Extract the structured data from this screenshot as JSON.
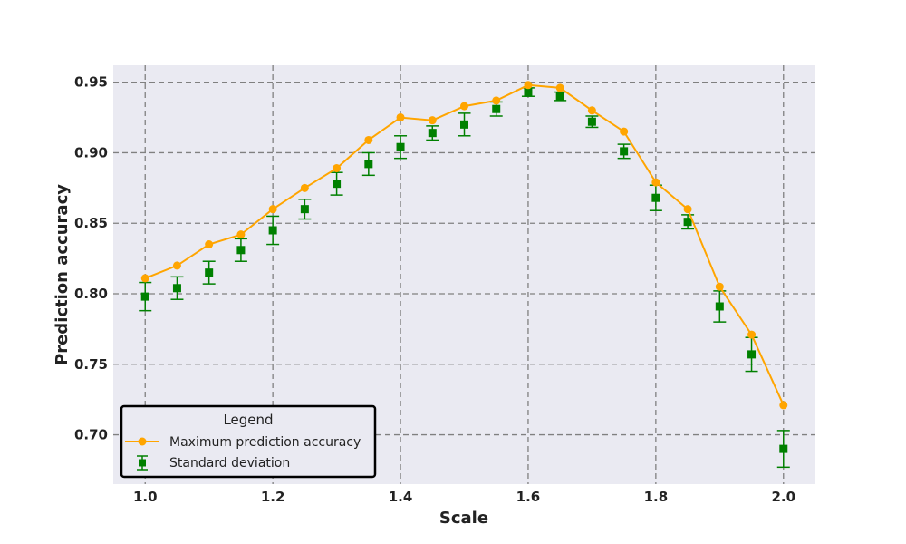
{
  "chart_data": {
    "type": "line",
    "xlabel": "Scale",
    "ylabel": "Prediction accuracy",
    "xlim": [
      0.95,
      2.05
    ],
    "ylim": [
      0.665,
      0.962
    ],
    "x_ticks": [
      1.0,
      1.2,
      1.4,
      1.6,
      1.8,
      2.0
    ],
    "x_tick_labels": [
      "1.0",
      "1.2",
      "1.4",
      "1.6",
      "1.8",
      "2.0"
    ],
    "y_ticks": [
      0.7,
      0.75,
      0.8,
      0.85,
      0.9,
      0.95
    ],
    "y_tick_labels": [
      "0.70",
      "0.75",
      "0.80",
      "0.85",
      "0.90",
      "0.95"
    ],
    "grid": true,
    "background_color": "#eaeaf2",
    "grid_color": "#808080",
    "x": [
      1.0,
      1.05,
      1.1,
      1.15,
      1.2,
      1.25,
      1.3,
      1.35,
      1.4,
      1.45,
      1.5,
      1.55,
      1.6,
      1.65,
      1.7,
      1.75,
      1.8,
      1.85,
      1.9,
      1.95,
      2.0
    ],
    "series": [
      {
        "name": "Maximum prediction accuracy",
        "kind": "line",
        "marker": "circle",
        "color": "#ffa500",
        "values": [
          0.811,
          0.82,
          0.835,
          0.842,
          0.86,
          0.875,
          0.889,
          0.909,
          0.925,
          0.923,
          0.933,
          0.937,
          0.948,
          0.946,
          0.93,
          0.915,
          0.879,
          0.86,
          0.805,
          0.771,
          0.721
        ]
      },
      {
        "name": "Standard deviation",
        "kind": "errorbar",
        "marker": "square",
        "color": "#008000",
        "values": [
          0.798,
          0.804,
          0.815,
          0.831,
          0.845,
          0.86,
          0.878,
          0.892,
          0.904,
          0.914,
          0.92,
          0.931,
          0.943,
          0.94,
          0.922,
          0.901,
          0.868,
          0.851,
          0.791,
          0.757,
          0.69
        ],
        "errors": [
          0.01,
          0.008,
          0.008,
          0.008,
          0.01,
          0.007,
          0.008,
          0.008,
          0.008,
          0.005,
          0.008,
          0.005,
          0.003,
          0.003,
          0.004,
          0.005,
          0.009,
          0.005,
          0.011,
          0.012,
          0.013
        ]
      }
    ],
    "legend": {
      "title": "Legend",
      "placement": "lower-left",
      "entries": [
        "Maximum prediction accuracy",
        "Standard deviation"
      ]
    }
  }
}
